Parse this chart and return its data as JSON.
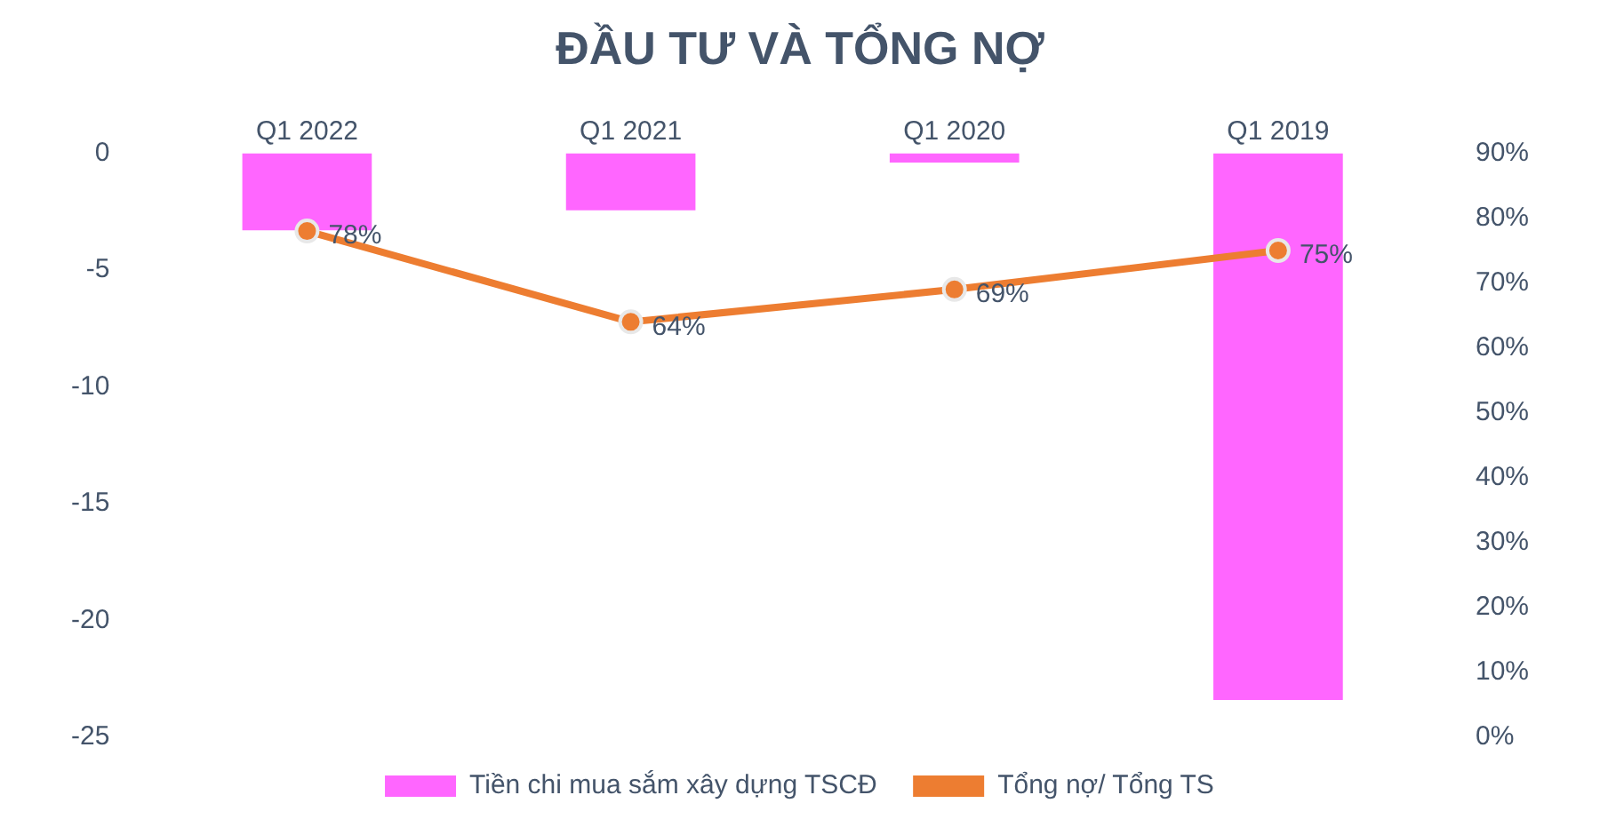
{
  "chart_data": {
    "type": "bar",
    "title": "ĐẦU TƯ VÀ TỔNG NỢ",
    "categories": [
      "Q1 2022",
      "Q1 2021",
      "Q1 2020",
      "Q1 2019"
    ],
    "series": [
      {
        "name": "Tiền chi mua sắm xây dựng TSCĐ",
        "color": "#ff66ff",
        "values": [
          -3.3,
          -2.45,
          -0.4,
          -23.4
        ]
      },
      {
        "name": "Tổng nợ/ Tổng TS",
        "type": "line",
        "axis": "y2",
        "color": "#ed7d31",
        "values": [
          78,
          64,
          69,
          75
        ],
        "value_labels": [
          "78%",
          "64%",
          "69%",
          "75%"
        ]
      }
    ],
    "ylim": [
      -25,
      0
    ],
    "yticks": [
      -25,
      -20,
      -15,
      -10,
      -5,
      0
    ],
    "y2lim": [
      0,
      90
    ],
    "y2ticks": [
      {
        "value": 0,
        "label": "0%"
      },
      {
        "value": 10,
        "label": "10%"
      },
      {
        "value": 20,
        "label": "20%"
      },
      {
        "value": 30,
        "label": "30%"
      },
      {
        "value": 40,
        "label": "40%"
      },
      {
        "value": 50,
        "label": "50%"
      },
      {
        "value": 60,
        "label": "60%"
      },
      {
        "value": 70,
        "label": "70%"
      },
      {
        "value": 80,
        "label": "80%"
      },
      {
        "value": 90,
        "label": "90%"
      }
    ],
    "grid": false,
    "legend": "bottom",
    "marker": "circle",
    "line_style": "solid"
  }
}
